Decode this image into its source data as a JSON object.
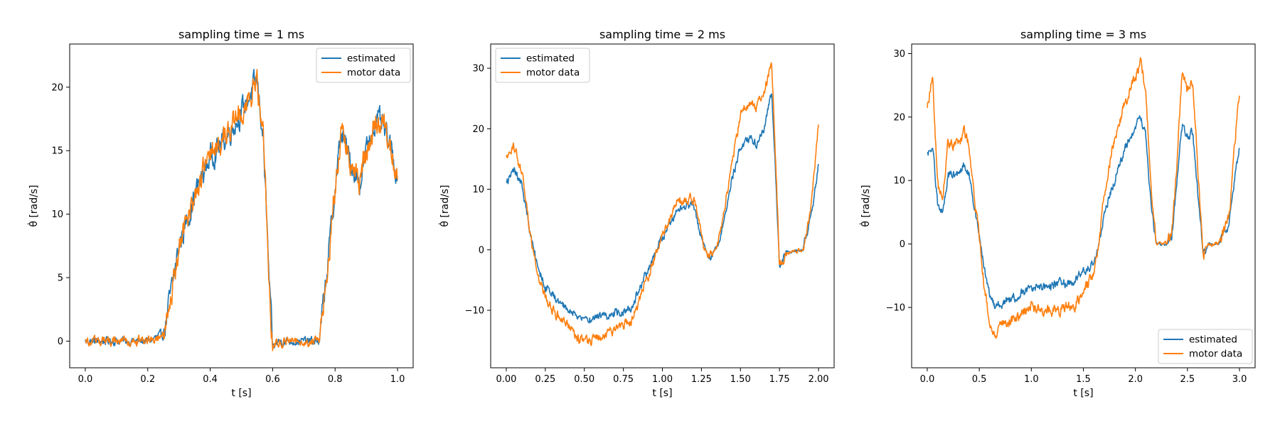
{
  "figure": {
    "background": "#ffffff"
  },
  "colors": {
    "estimated": "#1f77b4",
    "motor_data": "#ff7f0e"
  },
  "chart_data": [
    {
      "type": "line",
      "title": "sampling time = 1 ms",
      "xlabel": "t [s]",
      "ylabel": "θ̇ [rad/s]",
      "xlim": [
        -0.05,
        1.05
      ],
      "ylim": [
        -2.1,
        23.4
      ],
      "xticks": [
        0.0,
        0.2,
        0.4,
        0.6,
        0.8,
        1.0
      ],
      "xtick_labels": [
        "0.0",
        "0.2",
        "0.4",
        "0.6",
        "0.8",
        "1.0"
      ],
      "yticks": [
        0,
        5,
        10,
        15,
        20
      ],
      "ytick_labels": [
        "0",
        "5",
        "10",
        "15",
        "20"
      ],
      "legend": {
        "location": "upper right",
        "entries": [
          "estimated",
          "motor data"
        ]
      },
      "noise": {
        "estimated": 0.9,
        "motor_data": 1.0
      },
      "series": [
        {
          "name": "estimated",
          "color": "#1f77b4",
          "x": [
            0.0,
            0.1,
            0.2,
            0.25,
            0.28,
            0.3,
            0.35,
            0.4,
            0.45,
            0.5,
            0.55,
            0.57,
            0.59,
            0.6,
            0.62,
            0.7,
            0.75,
            0.78,
            0.8,
            0.82,
            0.85,
            0.88,
            0.9,
            0.93,
            0.95,
            0.98,
            1.0
          ],
          "y": [
            0.0,
            0.0,
            0.0,
            0.5,
            4.5,
            7.5,
            11.5,
            14.5,
            16.0,
            18.0,
            20.5,
            16.0,
            4.0,
            -0.5,
            0.0,
            0.0,
            0.0,
            7.0,
            12.0,
            16.5,
            14.0,
            12.5,
            15.0,
            17.5,
            17.0,
            15.0,
            13.0
          ]
        },
        {
          "name": "motor data",
          "color": "#ff7f0e",
          "x": [
            0.0,
            0.1,
            0.2,
            0.25,
            0.28,
            0.3,
            0.35,
            0.4,
            0.45,
            0.5,
            0.55,
            0.57,
            0.59,
            0.6,
            0.62,
            0.7,
            0.75,
            0.78,
            0.8,
            0.82,
            0.85,
            0.88,
            0.9,
            0.93,
            0.95,
            0.98,
            1.0
          ],
          "y": [
            0.0,
            0.0,
            0.0,
            0.5,
            4.5,
            7.5,
            11.5,
            14.5,
            16.0,
            18.0,
            20.5,
            16.0,
            4.0,
            -0.5,
            0.0,
            0.0,
            0.0,
            7.0,
            12.0,
            16.5,
            14.0,
            12.5,
            15.0,
            17.5,
            17.0,
            15.0,
            13.0
          ]
        }
      ]
    },
    {
      "type": "line",
      "title": "sampling time = 2 ms",
      "xlabel": "t [s]",
      "ylabel": "θ̇ [rad/s]",
      "xlim": [
        -0.1,
        2.1
      ],
      "ylim": [
        -19.5,
        34.0
      ],
      "xticks": [
        0.0,
        0.25,
        0.5,
        0.75,
        1.0,
        1.25,
        1.5,
        1.75,
        2.0
      ],
      "xtick_labels": [
        "0.00",
        "0.25",
        "0.50",
        "0.75",
        "1.00",
        "1.25",
        "1.50",
        "1.75",
        "2.00"
      ],
      "yticks": [
        -10,
        0,
        10,
        20,
        30
      ],
      "ytick_labels": [
        "−10",
        "0",
        "10",
        "20",
        "30"
      ],
      "legend": {
        "location": "upper left",
        "entries": [
          "estimated",
          "motor data"
        ]
      },
      "noise": {
        "estimated": 0.7,
        "motor_data": 0.8
      },
      "series": [
        {
          "name": "estimated",
          "color": "#1f77b4",
          "x": [
            0.0,
            0.05,
            0.1,
            0.15,
            0.2,
            0.25,
            0.3,
            0.4,
            0.5,
            0.6,
            0.7,
            0.8,
            0.9,
            1.0,
            1.1,
            1.2,
            1.25,
            1.3,
            1.35,
            1.4,
            1.45,
            1.5,
            1.55,
            1.6,
            1.65,
            1.7,
            1.73,
            1.75,
            1.8,
            1.9,
            1.95,
            2.0
          ],
          "y": [
            11.0,
            13.0,
            11.0,
            3.0,
            -3.0,
            -6.0,
            -7.5,
            -10.0,
            -11.5,
            -11.0,
            -10.5,
            -9.5,
            -4.0,
            2.0,
            7.0,
            7.5,
            2.0,
            -1.5,
            0.5,
            5.5,
            12.0,
            17.0,
            18.5,
            17.5,
            20.0,
            26.0,
            10.0,
            -2.0,
            -0.5,
            0.0,
            5.0,
            14.0
          ]
        },
        {
          "name": "motor data",
          "color": "#ff7f0e",
          "x": [
            0.0,
            0.05,
            0.1,
            0.15,
            0.2,
            0.25,
            0.3,
            0.4,
            0.5,
            0.6,
            0.7,
            0.8,
            0.9,
            1.0,
            1.1,
            1.2,
            1.25,
            1.3,
            1.35,
            1.4,
            1.45,
            1.5,
            1.55,
            1.6,
            1.65,
            1.7,
            1.73,
            1.75,
            1.8,
            1.9,
            1.95,
            2.0
          ],
          "y": [
            15.0,
            17.0,
            13.0,
            3.0,
            -4.0,
            -8.0,
            -10.0,
            -13.0,
            -15.5,
            -14.5,
            -13.0,
            -12.0,
            -5.0,
            2.0,
            8.5,
            8.5,
            2.0,
            -1.5,
            0.5,
            7.0,
            15.0,
            22.5,
            24.5,
            23.5,
            26.0,
            31.0,
            12.0,
            -2.5,
            -0.5,
            0.0,
            6.0,
            21.0
          ]
        }
      ]
    },
    {
      "type": "line",
      "title": "sampling time = 3 ms",
      "xlabel": "t [s]",
      "ylabel": "θ̇ [rad/s]",
      "xlim": [
        -0.15,
        3.15
      ],
      "ylim": [
        -19.5,
        31.5
      ],
      "xticks": [
        0.0,
        0.5,
        1.0,
        1.5,
        2.0,
        2.5,
        3.0
      ],
      "xtick_labels": [
        "0.0",
        "0.5",
        "1.0",
        "1.5",
        "2.0",
        "2.5",
        "3.0"
      ],
      "yticks": [
        -10,
        0,
        10,
        20,
        30
      ],
      "ytick_labels": [
        "−10",
        "0",
        "10",
        "20",
        "30"
      ],
      "legend": {
        "location": "lower right",
        "entries": [
          "estimated",
          "motor data"
        ]
      },
      "noise": {
        "estimated": 0.7,
        "motor_data": 0.9
      },
      "series": [
        {
          "name": "estimated",
          "color": "#1f77b4",
          "x": [
            0.0,
            0.05,
            0.1,
            0.15,
            0.2,
            0.3,
            0.35,
            0.4,
            0.45,
            0.5,
            0.55,
            0.6,
            0.65,
            0.8,
            1.0,
            1.2,
            1.4,
            1.6,
            1.65,
            1.7,
            1.8,
            1.9,
            2.0,
            2.05,
            2.1,
            2.15,
            2.2,
            2.3,
            2.35,
            2.4,
            2.45,
            2.5,
            2.55,
            2.6,
            2.65,
            2.7,
            2.8,
            2.9,
            2.95,
            3.0
          ],
          "y": [
            14.0,
            16.0,
            6.0,
            5.0,
            11.0,
            11.0,
            12.5,
            11.0,
            6.0,
            1.0,
            -4.0,
            -8.0,
            -10.0,
            -8.5,
            -7.0,
            -6.5,
            -6.0,
            -3.0,
            0.0,
            5.0,
            10.0,
            15.0,
            18.0,
            20.0,
            17.0,
            6.0,
            0.0,
            0.0,
            1.5,
            10.0,
            18.5,
            17.0,
            17.5,
            8.0,
            -1.5,
            0.0,
            0.0,
            3.0,
            10.0,
            15.0
          ]
        },
        {
          "name": "motor data",
          "color": "#ff7f0e",
          "x": [
            0.0,
            0.05,
            0.1,
            0.15,
            0.2,
            0.3,
            0.35,
            0.4,
            0.45,
            0.5,
            0.55,
            0.6,
            0.65,
            0.8,
            1.0,
            1.2,
            1.4,
            1.6,
            1.65,
            1.7,
            1.8,
            1.9,
            2.0,
            2.05,
            2.1,
            2.15,
            2.2,
            2.3,
            2.35,
            2.4,
            2.45,
            2.5,
            2.55,
            2.6,
            2.65,
            2.7,
            2.8,
            2.9,
            2.95,
            3.0
          ],
          "y": [
            21.0,
            27.0,
            9.0,
            7.0,
            16.0,
            16.0,
            18.0,
            16.0,
            8.0,
            1.0,
            -7.0,
            -12.0,
            -14.0,
            -12.0,
            -10.0,
            -10.5,
            -10.0,
            -5.0,
            0.0,
            8.0,
            17.0,
            22.0,
            26.0,
            29.0,
            24.0,
            8.0,
            0.0,
            0.0,
            2.0,
            13.0,
            28.0,
            24.0,
            26.0,
            12.0,
            -2.0,
            0.0,
            0.0,
            4.0,
            15.0,
            24.0
          ]
        }
      ]
    }
  ]
}
